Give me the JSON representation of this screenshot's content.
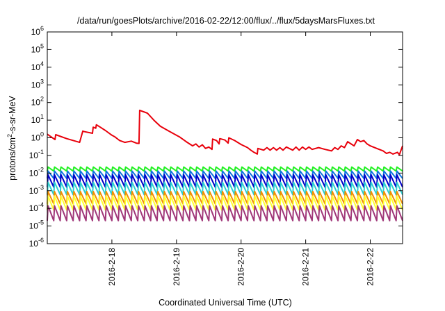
{
  "chart_data": {
    "type": "line",
    "title": "/data/run/goesPlots/archive/2016-02-22/12:00/flux/../flux/5daysMarsFluxes.txt",
    "xlabel": "Coordinated Universal Time (UTC)",
    "ylabel": {
      "prefix": "protons/cm",
      "superscript": "2",
      "suffix": "-s-sr-MeV"
    },
    "x_unit": "days since 2016-02-17 00:00 UTC",
    "xlim": [
      0,
      5.5
    ],
    "ylim": [
      1e-06,
      1000000.0
    ],
    "y_scale": "log",
    "grid": false,
    "x_ticks": [
      {
        "value": 1,
        "label": "2016-2-18"
      },
      {
        "value": 2,
        "label": "2016-2-19"
      },
      {
        "value": 3,
        "label": "2016-2-20"
      },
      {
        "value": 4,
        "label": "2016-2-21"
      },
      {
        "value": 5,
        "label": "2016-2-22"
      }
    ],
    "y_ticks": [
      {
        "exp": -6,
        "base": "10",
        "sup": "-6"
      },
      {
        "exp": -5,
        "base": "10",
        "sup": "-5"
      },
      {
        "exp": -4,
        "base": "10",
        "sup": "-4"
      },
      {
        "exp": -3,
        "base": "10",
        "sup": "-3"
      },
      {
        "exp": -2,
        "base": "10",
        "sup": "-2"
      },
      {
        "exp": -1,
        "base": "10",
        "sup": "-1"
      },
      {
        "exp": 0,
        "base": "10",
        "sup": "0"
      },
      {
        "exp": 1,
        "base": "10",
        "sup": "1"
      },
      {
        "exp": 2,
        "base": "10",
        "sup": "2"
      },
      {
        "exp": 3,
        "base": "10",
        "sup": "3"
      },
      {
        "exp": 4,
        "base": "10",
        "sup": "4"
      },
      {
        "exp": 5,
        "base": "10",
        "sup": "5"
      },
      {
        "exp": 6,
        "base": "10",
        "sup": "6"
      }
    ],
    "series": [
      {
        "color": "#e8000b",
        "x": [
          0,
          0.12,
          0.13,
          0.3,
          0.5,
          0.55,
          0.56,
          0.7,
          0.71,
          0.75,
          0.76,
          0.82,
          0.9,
          1.0,
          1.05,
          1.1,
          1.12,
          1.2,
          1.3,
          1.38,
          1.42,
          1.43,
          1.55,
          1.65,
          1.75,
          1.9,
          2.05,
          2.15,
          2.25,
          2.3,
          2.35,
          2.4,
          2.45,
          2.5,
          2.55,
          2.56,
          2.62,
          2.66,
          2.67,
          2.75,
          2.8,
          2.81,
          2.9,
          3.0,
          3.1,
          3.15,
          3.2,
          3.25,
          3.26,
          3.35,
          3.4,
          3.45,
          3.5,
          3.55,
          3.6,
          3.65,
          3.7,
          3.8,
          3.85,
          3.9,
          3.95,
          4.0,
          4.05,
          4.1,
          4.2,
          4.3,
          4.4,
          4.45,
          4.5,
          4.55,
          4.6,
          4.65,
          4.75,
          4.8,
          4.85,
          4.9,
          4.95,
          5.0,
          5.1,
          5.2,
          5.25,
          5.3,
          5.35,
          5.42,
          5.45,
          5.5
        ],
        "values": [
          1.6,
          0.8,
          1.5,
          0.9,
          0.55,
          2.4,
          2.3,
          1.8,
          4.0,
          3.5,
          5.5,
          4.0,
          2.6,
          1.4,
          1.1,
          0.8,
          0.7,
          0.55,
          0.65,
          0.5,
          0.48,
          36,
          25,
          10,
          4.5,
          2.2,
          1.1,
          0.6,
          0.35,
          0.45,
          0.3,
          0.4,
          0.25,
          0.3,
          0.22,
          0.85,
          0.7,
          0.45,
          0.9,
          0.75,
          0.5,
          1.0,
          0.7,
          0.42,
          0.28,
          0.2,
          0.15,
          0.12,
          0.25,
          0.2,
          0.28,
          0.2,
          0.28,
          0.2,
          0.28,
          0.2,
          0.3,
          0.2,
          0.3,
          0.2,
          0.3,
          0.22,
          0.3,
          0.22,
          0.28,
          0.22,
          0.18,
          0.28,
          0.22,
          0.35,
          0.28,
          0.6,
          0.35,
          0.8,
          0.6,
          0.7,
          0.45,
          0.35,
          0.25,
          0.18,
          0.13,
          0.15,
          0.12,
          0.15,
          0.11,
          0.35
        ]
      },
      {
        "color": "#1ff01f",
        "start": 0.022,
        "end": 0.013,
        "period": 0.1
      },
      {
        "color": "#0f75e0",
        "start": 0.013,
        "end": 0.005,
        "period": 0.1
      },
      {
        "color": "#0000c8",
        "start": 0.008,
        "end": 0.0016,
        "period": 0.1
      },
      {
        "color": "#2ccfd0",
        "start": 0.003,
        "end": 0.0006,
        "period": 0.1
      },
      {
        "color": "#f29000",
        "start": 0.0009,
        "end": 0.00018,
        "period": 0.1
      },
      {
        "color": "#ffff33",
        "start": 0.0005,
        "end": 8e-05,
        "period": 0.1
      },
      {
        "color": "#a03779",
        "start": 0.00014,
        "end": 2e-05,
        "period": 0.1
      }
    ]
  }
}
